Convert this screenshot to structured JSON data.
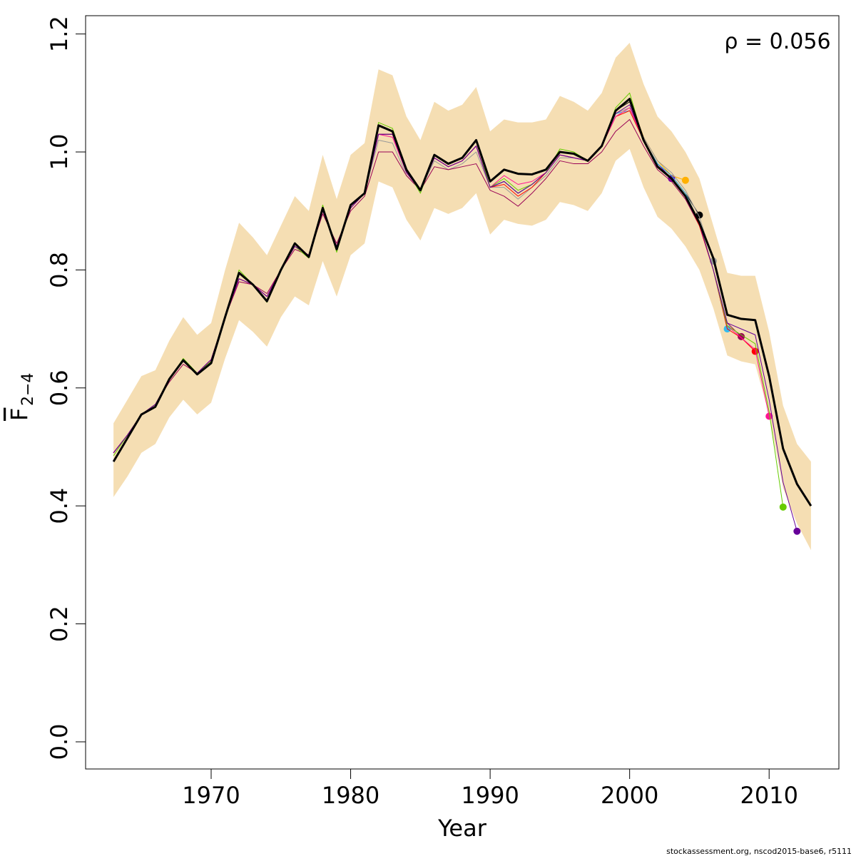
{
  "chart_data": {
    "type": "line",
    "xlabel": "Year",
    "ylabel": "F",
    "ylabel_subscript": "2−4",
    "annotation": "ρ = 0.056",
    "footer": "stockassessment.org, nscod2015-base6, r5111",
    "xlim": [
      1961,
      2015
    ],
    "ylim": [
      -0.046,
      1.231
    ],
    "xticks": [
      1970,
      1980,
      1990,
      2000,
      2010
    ],
    "yticks": [
      {
        "value": 0,
        "label": "0.0"
      },
      0.2,
      0.4,
      0.6,
      0.8,
      {
        "value": 1,
        "label": "1.0"
      },
      1.2
    ],
    "grid": false,
    "x": [
      1963,
      1964,
      1965,
      1966,
      1967,
      1968,
      1969,
      1970,
      1971,
      1972,
      1973,
      1974,
      1975,
      1976,
      1977,
      1978,
      1979,
      1980,
      1981,
      1982,
      1983,
      1984,
      1985,
      1986,
      1987,
      1988,
      1989,
      1990,
      1991,
      1992,
      1993,
      1994,
      1995,
      1996,
      1997,
      1998,
      1999,
      2000,
      2001,
      2002,
      2003,
      2004,
      2005,
      2006,
      2007,
      2008,
      2009,
      2010,
      2011,
      2012,
      2013
    ],
    "band": {
      "color": "#f5deb3",
      "upper": [
        0.54,
        0.58,
        0.62,
        0.63,
        0.68,
        0.72,
        0.69,
        0.71,
        0.8,
        0.88,
        0.855,
        0.825,
        0.875,
        0.925,
        0.9,
        0.995,
        0.92,
        0.995,
        1.015,
        1.14,
        1.13,
        1.06,
        1.02,
        1.085,
        1.07,
        1.08,
        1.11,
        1.035,
        1.055,
        1.05,
        1.05,
        1.055,
        1.095,
        1.085,
        1.07,
        1.1,
        1.16,
        1.185,
        1.115,
        1.06,
        1.035,
        1.0,
        0.955,
        0.875,
        0.795,
        0.79,
        0.79,
        0.695,
        0.57,
        0.505,
        0.475
      ],
      "lower": [
        0.415,
        0.45,
        0.49,
        0.505,
        0.55,
        0.58,
        0.555,
        0.575,
        0.65,
        0.715,
        0.695,
        0.67,
        0.72,
        0.755,
        0.74,
        0.815,
        0.755,
        0.825,
        0.845,
        0.95,
        0.94,
        0.885,
        0.85,
        0.905,
        0.895,
        0.905,
        0.93,
        0.86,
        0.885,
        0.878,
        0.875,
        0.885,
        0.915,
        0.91,
        0.9,
        0.93,
        0.985,
        1.005,
        0.94,
        0.89,
        0.87,
        0.84,
        0.8,
        0.735,
        0.655,
        0.645,
        0.64,
        0.555,
        0.43,
        0.37,
        0.325
      ]
    },
    "series": [
      {
        "color": "#000000",
        "width": 3,
        "values": [
          0.475,
          0.515,
          0.555,
          0.568,
          0.615,
          0.647,
          0.623,
          0.642,
          0.72,
          0.795,
          0.775,
          0.747,
          0.8,
          0.845,
          0.822,
          0.905,
          0.835,
          0.91,
          0.93,
          1.045,
          1.035,
          0.97,
          0.935,
          0.995,
          0.98,
          0.99,
          1.02,
          0.95,
          0.97,
          0.963,
          0.962,
          0.97,
          1.0,
          0.997,
          0.985,
          1.01,
          1.07,
          1.09,
          1.02,
          0.975,
          0.955,
          0.925,
          0.88,
          0.82,
          0.724,
          0.717,
          0.715,
          0.62,
          0.497,
          0.437,
          0.4
        ]
      },
      {
        "color": "#660099",
        "width": 1,
        "point": true,
        "values": [
          0.49,
          0.52,
          0.555,
          0.572,
          0.615,
          0.645,
          0.625,
          0.648,
          0.72,
          0.785,
          0.775,
          0.755,
          0.8,
          0.84,
          0.825,
          0.9,
          0.84,
          0.905,
          0.93,
          1.03,
          1.03,
          0.965,
          0.935,
          0.99,
          0.975,
          0.985,
          1.01,
          0.94,
          0.95,
          0.93,
          0.945,
          0.965,
          0.995,
          0.99,
          0.985,
          1.01,
          1.065,
          1.08,
          1.02,
          0.975,
          0.955,
          0.925,
          0.878,
          0.8,
          0.71,
          0.7,
          0.69,
          0.58,
          0.44,
          0.357,
          null
        ]
      },
      {
        "color": "#66cc00",
        "width": 1,
        "point": true,
        "values": [
          0.485,
          0.52,
          0.555,
          0.572,
          0.615,
          0.65,
          0.625,
          0.645,
          0.72,
          0.8,
          0.775,
          0.745,
          0.8,
          0.84,
          0.82,
          0.91,
          0.83,
          0.91,
          0.93,
          1.05,
          1.04,
          0.97,
          0.93,
          0.995,
          0.98,
          0.99,
          1.02,
          0.94,
          0.955,
          0.935,
          0.945,
          0.965,
          1.005,
          1.0,
          0.985,
          1.01,
          1.075,
          1.1,
          1.02,
          0.975,
          0.955,
          0.925,
          0.88,
          0.8,
          0.705,
          0.69,
          0.675,
          0.56,
          0.398,
          null,
          null
        ]
      },
      {
        "color": "#ff1493",
        "width": 1,
        "point": true,
        "values": [
          0.49,
          0.52,
          0.555,
          0.572,
          0.615,
          0.645,
          0.625,
          0.648,
          0.72,
          0.785,
          0.775,
          0.755,
          0.8,
          0.84,
          0.825,
          0.9,
          0.84,
          0.905,
          0.93,
          1.03,
          1.025,
          0.965,
          0.935,
          0.99,
          0.975,
          0.985,
          1.01,
          0.94,
          0.96,
          0.945,
          0.95,
          0.965,
          0.995,
          0.99,
          0.985,
          1.01,
          1.06,
          1.075,
          1.02,
          0.975,
          0.955,
          0.925,
          0.88,
          0.8,
          0.705,
          0.685,
          0.665,
          0.552,
          null,
          null,
          null
        ]
      },
      {
        "color": "#ff0000",
        "width": 1,
        "point": true,
        "values": [
          0.49,
          0.52,
          0.555,
          0.572,
          0.615,
          0.645,
          0.625,
          0.648,
          0.72,
          0.785,
          0.775,
          0.755,
          0.8,
          0.84,
          0.825,
          0.9,
          0.84,
          0.905,
          0.93,
          1.03,
          1.03,
          0.965,
          0.935,
          0.99,
          0.975,
          0.985,
          1.01,
          0.94,
          0.945,
          0.925,
          0.94,
          0.965,
          0.995,
          0.99,
          0.985,
          1.01,
          1.06,
          1.07,
          1.02,
          0.975,
          0.955,
          0.925,
          0.875,
          0.8,
          0.7,
          0.685,
          0.662,
          null,
          null,
          null,
          null
        ]
      },
      {
        "color": "#990055",
        "width": 1,
        "point": true,
        "values": [
          0.49,
          0.52,
          0.555,
          0.572,
          0.61,
          0.64,
          0.625,
          0.645,
          0.72,
          0.78,
          0.775,
          0.76,
          0.8,
          0.835,
          0.825,
          0.895,
          0.845,
          0.9,
          0.925,
          1.0,
          1.0,
          0.96,
          0.935,
          0.975,
          0.97,
          0.975,
          0.98,
          0.935,
          0.925,
          0.908,
          0.93,
          0.955,
          0.985,
          0.98,
          0.98,
          1.0,
          1.035,
          1.055,
          1.01,
          0.97,
          0.95,
          0.92,
          0.875,
          0.8,
          0.71,
          0.687,
          null,
          null,
          null,
          null,
          null
        ]
      },
      {
        "color": "#33bbee",
        "width": 1,
        "point": true,
        "values": [
          0.49,
          0.52,
          0.555,
          0.572,
          0.615,
          0.645,
          0.625,
          0.648,
          0.72,
          0.785,
          0.775,
          0.755,
          0.8,
          0.84,
          0.825,
          0.9,
          0.84,
          0.905,
          0.93,
          1.03,
          1.03,
          0.965,
          0.935,
          0.99,
          0.975,
          0.985,
          1.01,
          0.94,
          0.95,
          0.93,
          0.945,
          0.965,
          0.995,
          0.99,
          0.985,
          1.01,
          1.065,
          1.07,
          1.02,
          0.98,
          0.96,
          0.93,
          0.88,
          0.8,
          0.7,
          null,
          null,
          null,
          null,
          null,
          null
        ]
      },
      {
        "color": "#999999",
        "width": 1,
        "point": true,
        "values": [
          0.49,
          0.52,
          0.555,
          0.572,
          0.615,
          0.645,
          0.625,
          0.648,
          0.72,
          0.785,
          0.775,
          0.755,
          0.8,
          0.84,
          0.825,
          0.9,
          0.84,
          0.905,
          0.93,
          1.02,
          1.015,
          0.96,
          0.935,
          0.985,
          0.97,
          0.98,
          1.0,
          0.94,
          0.94,
          0.92,
          0.94,
          0.96,
          0.99,
          0.99,
          0.985,
          1.01,
          1.065,
          1.075,
          1.025,
          0.985,
          0.965,
          0.935,
          0.89,
          0.815,
          null,
          null,
          null,
          null,
          null,
          null,
          null
        ]
      },
      {
        "color": "#000000",
        "width": 1,
        "point": true,
        "values": [
          0.49,
          0.52,
          0.555,
          0.572,
          0.615,
          0.645,
          0.625,
          0.648,
          0.72,
          0.785,
          0.775,
          0.755,
          0.8,
          0.84,
          0.825,
          0.9,
          0.84,
          0.905,
          0.93,
          1.03,
          1.03,
          0.965,
          0.935,
          0.99,
          0.975,
          0.985,
          1.01,
          0.94,
          0.95,
          0.93,
          0.945,
          0.965,
          0.995,
          0.99,
          0.985,
          1.01,
          1.07,
          1.085,
          1.02,
          0.98,
          0.96,
          0.93,
          0.893,
          null,
          null,
          null,
          null,
          null,
          null,
          null,
          null
        ]
      },
      {
        "color": "#ffb000",
        "width": 1,
        "point": true,
        "values": [
          0.49,
          0.52,
          0.555,
          0.572,
          0.615,
          0.645,
          0.625,
          0.648,
          0.72,
          0.785,
          0.775,
          0.755,
          0.8,
          0.84,
          0.825,
          0.9,
          0.84,
          0.905,
          0.93,
          1.03,
          1.03,
          0.965,
          0.935,
          0.99,
          0.975,
          0.985,
          1.01,
          0.94,
          0.95,
          0.93,
          0.945,
          0.965,
          0.995,
          0.99,
          0.985,
          1.01,
          1.07,
          1.09,
          1.025,
          0.985,
          0.96,
          0.952,
          null,
          null,
          null,
          null,
          null,
          null,
          null,
          null,
          null
        ]
      },
      {
        "color": "#7700bb",
        "width": 1,
        "point": true,
        "values": [
          0.49,
          0.52,
          0.555,
          0.572,
          0.615,
          0.645,
          0.625,
          0.648,
          0.72,
          0.785,
          0.775,
          0.755,
          0.8,
          0.84,
          0.825,
          0.9,
          0.84,
          0.905,
          0.93,
          1.03,
          1.03,
          0.965,
          0.935,
          0.99,
          0.975,
          0.985,
          1.01,
          0.94,
          0.95,
          0.93,
          0.945,
          0.965,
          0.995,
          0.99,
          0.985,
          1.01,
          1.07,
          1.09,
          1.02,
          0.98,
          0.955,
          null,
          null,
          null,
          null,
          null,
          null,
          null,
          null,
          null,
          null
        ]
      }
    ]
  }
}
